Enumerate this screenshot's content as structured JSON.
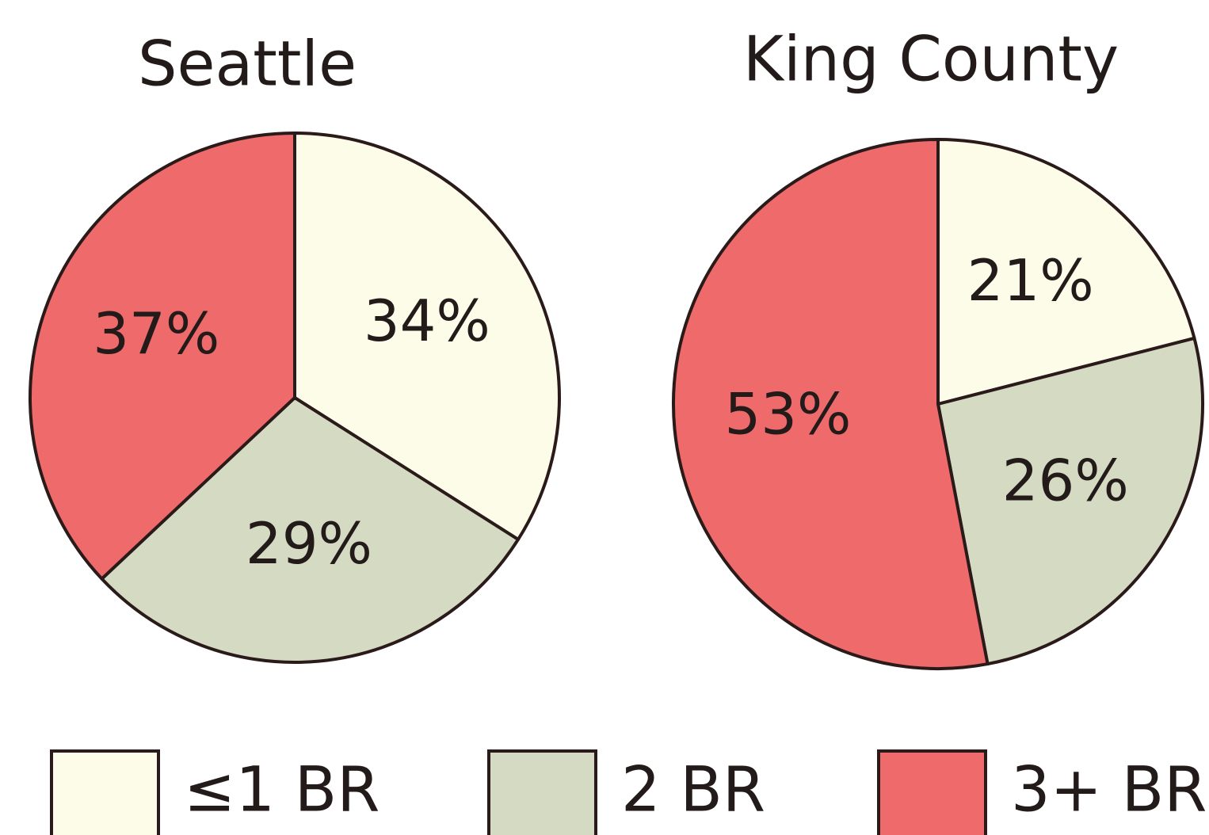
{
  "chart_data": [
    {
      "type": "pie",
      "title": "Seattle",
      "categories": [
        "≤1 BR",
        "2 BR",
        "3+ BR"
      ],
      "values": [
        34,
        29,
        37
      ],
      "value_labels": [
        "34%",
        "29%",
        "37%"
      ],
      "colors": [
        "#fdfce8",
        "#d5dac3",
        "#ef6a6a"
      ]
    },
    {
      "type": "pie",
      "title": "King County",
      "values": [
        21,
        26,
        53
      ],
      "value_labels": [
        "21%",
        "26%",
        "53%"
      ],
      "colors": [
        "#fdfce8",
        "#d5dac3",
        "#ef6a6a"
      ]
    }
  ]
}
